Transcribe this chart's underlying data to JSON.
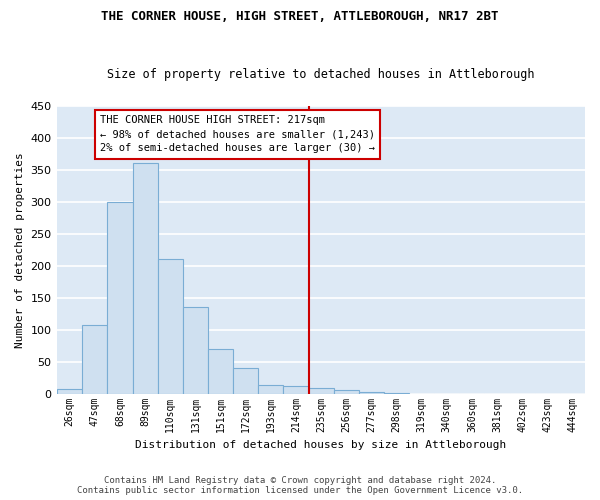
{
  "title": "THE CORNER HOUSE, HIGH STREET, ATTLEBOROUGH, NR17 2BT",
  "subtitle": "Size of property relative to detached houses in Attleborough",
  "xlabel": "Distribution of detached houses by size in Attleborough",
  "ylabel": "Number of detached properties",
  "footer_line1": "Contains HM Land Registry data © Crown copyright and database right 2024.",
  "footer_line2": "Contains public sector information licensed under the Open Government Licence v3.0.",
  "categories": [
    "26sqm",
    "47sqm",
    "68sqm",
    "89sqm",
    "110sqm",
    "131sqm",
    "151sqm",
    "172sqm",
    "193sqm",
    "214sqm",
    "235sqm",
    "256sqm",
    "277sqm",
    "298sqm",
    "319sqm",
    "340sqm",
    "360sqm",
    "381sqm",
    "402sqm",
    "423sqm",
    "444sqm"
  ],
  "values": [
    8,
    107,
    300,
    360,
    210,
    135,
    70,
    40,
    14,
    12,
    9,
    5,
    3,
    1,
    0,
    0,
    0,
    0,
    0,
    0,
    0
  ],
  "bar_fill_color": "#cfe0f0",
  "bar_edge_color": "#7aadd4",
  "grid_color": "#d0dde8",
  "bg_color": "#dde9f5",
  "annotation_text": "THE CORNER HOUSE HIGH STREET: 217sqm\n← 98% of detached houses are smaller (1,243)\n2% of semi-detached houses are larger (30) →",
  "vline_x": 9.5,
  "vline_color": "#cc0000",
  "annotation_box_color": "#cc0000",
  "ylim": [
    0,
    450
  ],
  "yticks": [
    0,
    50,
    100,
    150,
    200,
    250,
    300,
    350,
    400,
    450
  ]
}
